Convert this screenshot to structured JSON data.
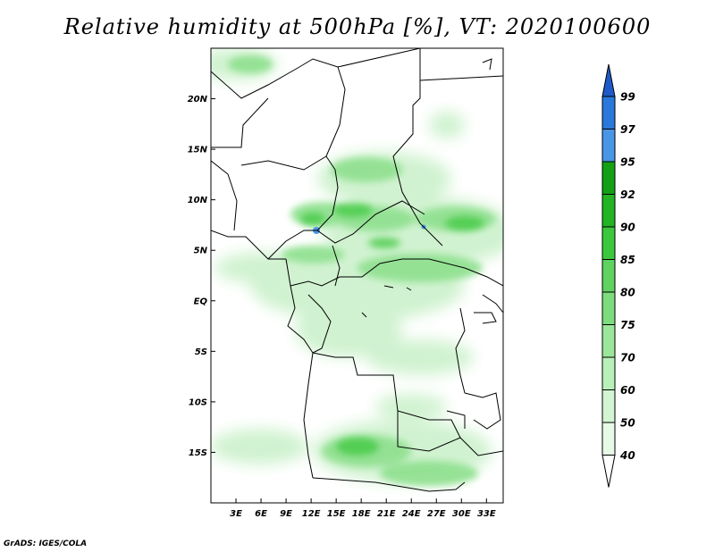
{
  "title": "Relative humidity at 500hPa [%], VT: 2020100600",
  "footer": "GrADS: IGES/COLA",
  "map": {
    "lat_labels": [
      "20N",
      "15N",
      "10N",
      "5N",
      "EQ",
      "5S",
      "10S",
      "15S"
    ],
    "lat_values": [
      20,
      15,
      10,
      5,
      0,
      -5,
      -10,
      -15
    ],
    "lon_labels": [
      "3E",
      "6E",
      "9E",
      "12E",
      "15E",
      "18E",
      "21E",
      "24E",
      "27E",
      "30E",
      "33E"
    ],
    "lon_values": [
      3,
      6,
      9,
      12,
      15,
      18,
      21,
      24,
      27,
      30,
      33
    ],
    "lon_range": [
      0,
      35
    ],
    "lat_range": [
      -20,
      25
    ]
  },
  "colorbar": {
    "levels": [
      "40",
      "50",
      "60",
      "70",
      "75",
      "80",
      "85",
      "90",
      "92",
      "95",
      "97",
      "99"
    ],
    "colors": [
      "#ffffff",
      "#e6fae6",
      "#d2f5d2",
      "#b9f0b9",
      "#9be69b",
      "#7ddc7d",
      "#5fd25f",
      "#3cc83c",
      "#23b423",
      "#14a014",
      "#4a96e6",
      "#2a78dc",
      "#1e5ac8"
    ]
  }
}
